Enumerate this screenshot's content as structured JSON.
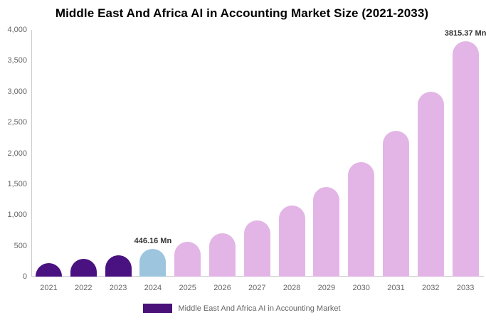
{
  "chart_data": {
    "type": "bar",
    "title": "Middle East And Africa AI in Accounting Market Size (2021-2033)",
    "categories": [
      "2021",
      "2022",
      "2023",
      "2024",
      "2025",
      "2026",
      "2027",
      "2028",
      "2029",
      "2030",
      "2031",
      "2032",
      "2033"
    ],
    "values": [
      218,
      286,
      348,
      446.16,
      560,
      702,
      905,
      1148,
      1455,
      1858,
      2358,
      2995,
      3815.37
    ],
    "bar_colors": [
      "#4a1280",
      "#4a1280",
      "#4a1280",
      "#9dc6de",
      "#e3b5e6",
      "#e3b5e6",
      "#e3b5e6",
      "#e3b5e6",
      "#e3b5e6",
      "#e3b5e6",
      "#e3b5e6",
      "#e3b5e6",
      "#e3b5e6"
    ],
    "data_labels": [
      {
        "index": 3,
        "text": "446.16 Mn"
      },
      {
        "index": 12,
        "text": "3815.37 Mn"
      }
    ],
    "xlabel": "",
    "ylabel": "",
    "ylim": [
      0,
      4000
    ],
    "yticks": [
      0,
      500,
      1000,
      1500,
      2000,
      2500,
      3000,
      3500,
      4000
    ],
    "ytick_labels": [
      "0",
      "500",
      "1,000",
      "1,500",
      "2,000",
      "2,500",
      "3,000",
      "3,500",
      "4,000"
    ],
    "grid": false,
    "legend_position": "bottom-center"
  },
  "legend": {
    "label": "Middle East And Africa AI in Accounting Market",
    "swatch_color": "#4a1278"
  },
  "colors": {
    "bar_historical": "#4a1280",
    "bar_current_year": "#9dc6de",
    "bar_forecast": "#e3b5e6",
    "axis_line": "#cccccc",
    "tick_text": "#666666",
    "data_label_text": "#333333",
    "title_text": "#000000",
    "background": "#ffffff"
  }
}
